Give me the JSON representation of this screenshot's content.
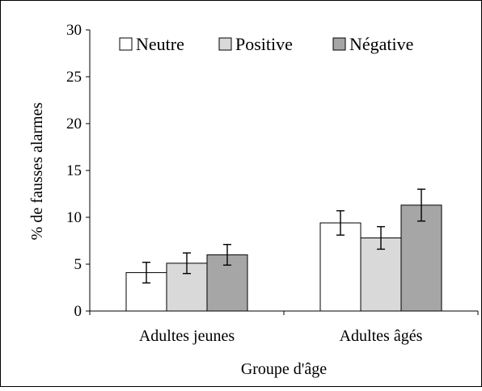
{
  "chart_data": {
    "type": "bar",
    "title": "",
    "xlabel": "Groupe d'âge",
    "ylabel": "% de fausses alarmes",
    "ylim": [
      0,
      30
    ],
    "yticks": [
      0,
      5,
      10,
      15,
      20,
      25,
      30
    ],
    "categories": [
      "Adultes jeunes",
      "Adultes âgés"
    ],
    "series": [
      {
        "name": "Neutre",
        "color": "#ffffff",
        "values": [
          4.1,
          9.4
        ],
        "error": [
          1.1,
          1.3
        ]
      },
      {
        "name": "Positive",
        "color": "#d9d9d9",
        "values": [
          5.1,
          7.8
        ],
        "error": [
          1.1,
          1.2
        ]
      },
      {
        "name": "Négative",
        "color": "#a6a6a6",
        "values": [
          6.0,
          11.3
        ],
        "error": [
          1.1,
          1.7
        ]
      }
    ],
    "error_bars": true,
    "legend_position": "top",
    "grid": false
  }
}
